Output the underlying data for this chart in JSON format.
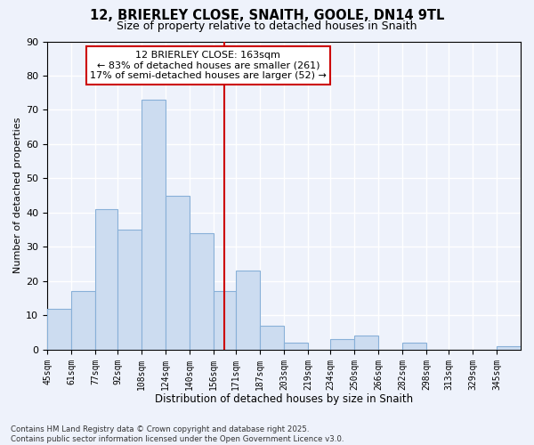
{
  "title": "12, BRIERLEY CLOSE, SNAITH, GOOLE, DN14 9TL",
  "subtitle": "Size of property relative to detached houses in Snaith",
  "xlabel": "Distribution of detached houses by size in Snaith",
  "ylabel": "Number of detached properties",
  "bar_color": "#ccdcf0",
  "bar_edge_color": "#88b0d8",
  "vline_x": 163,
  "vline_color": "#cc0000",
  "annotation_title": "12 BRIERLEY CLOSE: 163sqm",
  "annotation_line1": "← 83% of detached houses are smaller (261)",
  "annotation_line2": "17% of semi-detached houses are larger (52) →",
  "bin_edges": [
    45,
    61,
    77,
    92,
    108,
    124,
    140,
    156,
    171,
    187,
    203,
    219,
    234,
    250,
    266,
    282,
    298,
    313,
    329,
    345,
    361
  ],
  "bin_counts": [
    12,
    17,
    41,
    35,
    73,
    45,
    34,
    17,
    23,
    7,
    2,
    0,
    3,
    4,
    0,
    2,
    0,
    0,
    0,
    1
  ],
  "ylim": [
    0,
    90
  ],
  "yticks": [
    0,
    10,
    20,
    30,
    40,
    50,
    60,
    70,
    80,
    90
  ],
  "footnote1": "Contains HM Land Registry data © Crown copyright and database right 2025.",
  "footnote2": "Contains public sector information licensed under the Open Government Licence v3.0.",
  "bg_color": "#eef2fb",
  "grid_color": "#ffffff"
}
